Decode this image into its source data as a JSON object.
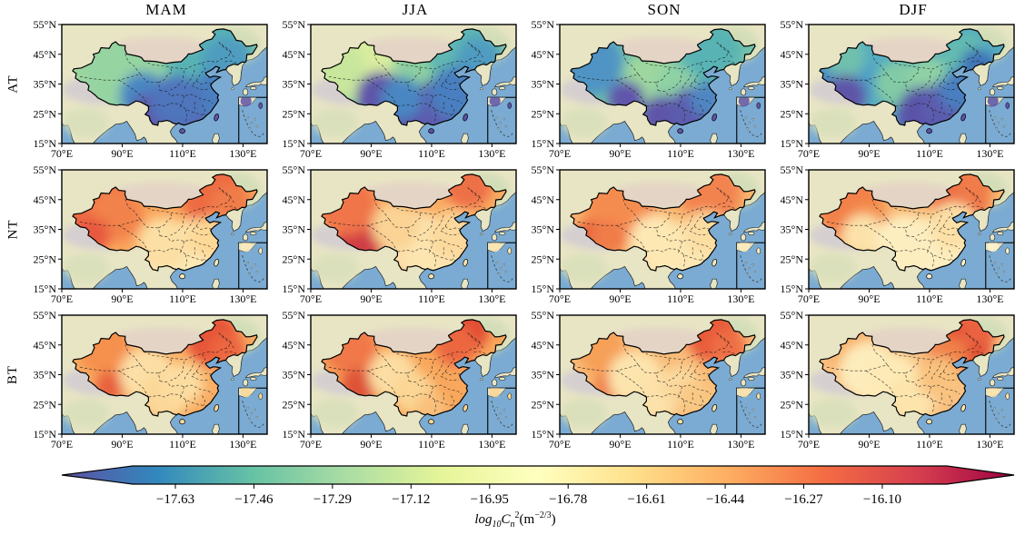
{
  "figure": {
    "type_note": "3x4 grid of seasonal maps of China with shared colorbar"
  },
  "colors": {
    "ocean": "#7babd2",
    "land": "#e8e5c4",
    "coast": "#1c1c1c",
    "tibet_tint": "#cfc8d4",
    "north_tint": "#e3cfc6",
    "ne_tint": "#ccdcb4"
  },
  "chart_data": {
    "type": "heatmap",
    "title": "",
    "columns": [
      "MAM",
      "JJA",
      "SON",
      "DJF"
    ],
    "rows": [
      "AT",
      "NT",
      "BT"
    ],
    "x_ticks": [
      "70°E",
      "90°E",
      "110°E",
      "130°E"
    ],
    "x_tick_lons": [
      70,
      90,
      110,
      130
    ],
    "y_ticks": [
      "55°N",
      "45°N",
      "35°N",
      "25°N",
      "15°N"
    ],
    "y_tick_lats": [
      55,
      45,
      35,
      25,
      15
    ],
    "lon_range": [
      70,
      138
    ],
    "lat_range": [
      15,
      55
    ],
    "colorbar": {
      "ticks": [
        "−17.63",
        "−17.46",
        "−17.29",
        "−17.12",
        "−16.95",
        "−16.78",
        "−16.61",
        "−16.44",
        "−16.27",
        "−16.10"
      ],
      "tick_values": [
        -17.63,
        -17.46,
        -17.29,
        -17.12,
        -16.95,
        -16.78,
        -16.61,
        -16.44,
        -16.27,
        -16.1
      ],
      "extend": "both",
      "colormap": [
        "#5e4fa2",
        "#3288bd",
        "#66c2a5",
        "#abdda4",
        "#e6f598",
        "#ffffbf",
        "#fee08b",
        "#fdae61",
        "#f46d43",
        "#d53e4f",
        "#9e0142"
      ],
      "label_parts": {
        "lead": "log",
        "lead_sub": "10",
        "sym": "C",
        "sym_sub": "n",
        "sym_sup": "2",
        "unit": "(m",
        "unit_sup": "−2/3",
        "unit_close": ")"
      }
    },
    "panels": [
      {
        "row": "AT",
        "col": "MAM",
        "base": "#7cc7a5",
        "island": "#6055aa",
        "blobs": [
          [
            80,
            44,
            16,
            "#9ed79f"
          ],
          [
            90,
            40,
            14,
            "#96d4a2"
          ],
          [
            118,
            46,
            14,
            "#59b3b4"
          ],
          [
            125,
            42,
            9,
            "#4f9cc0"
          ],
          [
            97,
            31,
            8,
            "#4a86c2"
          ],
          [
            100,
            24,
            8,
            "#5e55a8"
          ],
          [
            110,
            23,
            9,
            "#6055aa"
          ],
          [
            116,
            26,
            10,
            "#5b5cae"
          ],
          [
            120,
            31,
            8,
            "#4a7fc0"
          ],
          [
            108,
            29,
            9,
            "#4f74bc"
          ]
        ]
      },
      {
        "row": "AT",
        "col": "JJA",
        "base": "#8ccfa2",
        "island": "#5a52a8",
        "blobs": [
          [
            84,
            44,
            14,
            "#d9ec9e"
          ],
          [
            78,
            40,
            10,
            "#c8e69c"
          ],
          [
            120,
            47,
            12,
            "#5fb7b2"
          ],
          [
            126,
            43,
            8,
            "#4f9cc0"
          ],
          [
            93,
            31,
            8,
            "#5e55a8"
          ],
          [
            104,
            25,
            9,
            "#5a52a8"
          ],
          [
            114,
            27,
            10,
            "#5b5cae"
          ],
          [
            118,
            32,
            9,
            "#4a7fc0"
          ],
          [
            100,
            30,
            7,
            "#4a86c2"
          ]
        ]
      },
      {
        "row": "AT",
        "col": "SON",
        "base": "#74c2ab",
        "island": "#5e55a8",
        "blobs": [
          [
            80,
            42,
            11,
            "#4f94c4"
          ],
          [
            100,
            37,
            9,
            "#9ed79f"
          ],
          [
            108,
            34,
            7,
            "#8fd2a4"
          ],
          [
            120,
            46,
            10,
            "#59b3b4"
          ],
          [
            92,
            30,
            6,
            "#6055aa"
          ],
          [
            104,
            24,
            7,
            "#5e55a8"
          ],
          [
            114,
            26,
            8,
            "#5b5cae"
          ],
          [
            119,
            30,
            6,
            "#4f86c2"
          ]
        ]
      },
      {
        "row": "AT",
        "col": "DJF",
        "base": "#55acc0",
        "island": "#5a52a8",
        "blobs": [
          [
            78,
            40,
            11,
            "#4489c4"
          ],
          [
            85,
            36,
            8,
            "#4d9ec6"
          ],
          [
            82,
            44,
            7,
            "#6fc0ae"
          ],
          [
            100,
            35,
            8,
            "#82cba6"
          ],
          [
            110,
            37,
            7,
            "#8fd2a4"
          ],
          [
            122,
            44,
            8,
            "#63bbb0"
          ],
          [
            126,
            41,
            6,
            "#3f74b8"
          ],
          [
            82,
            31,
            7,
            "#5e55a8"
          ],
          [
            108,
            25,
            9,
            "#5a52a8"
          ],
          [
            116,
            27,
            9,
            "#5b5cae"
          ],
          [
            120,
            33,
            7,
            "#4a7fc0"
          ]
        ]
      },
      {
        "row": "NT",
        "col": "MAM",
        "base": "#f9a65c",
        "island": "#fdeab8",
        "blobs": [
          [
            82,
            44,
            13,
            "#ee6a42"
          ],
          [
            88,
            40,
            9,
            "#f2824c"
          ],
          [
            120,
            47,
            11,
            "#ee6a42"
          ],
          [
            126,
            43,
            7,
            "#f07c4a"
          ],
          [
            80,
            33,
            6,
            "#e85840"
          ],
          [
            108,
            25,
            12,
            "#fdeab8"
          ],
          [
            114,
            28,
            10,
            "#fdeab8"
          ],
          [
            104,
            30,
            9,
            "#fcdfa4"
          ],
          [
            119,
            32,
            7,
            "#fdd896"
          ]
        ]
      },
      {
        "row": "NT",
        "col": "JJA",
        "base": "#f9ab62",
        "island": "#fde5b0",
        "blobs": [
          [
            86,
            31,
            8,
            "#d03d44"
          ],
          [
            82,
            43,
            10,
            "#f0744a"
          ],
          [
            122,
            50,
            8,
            "#ee7046"
          ],
          [
            105,
            30,
            11,
            "#fce0ac"
          ],
          [
            112,
            27,
            10,
            "#fde5b0"
          ],
          [
            117,
            33,
            8,
            "#fcd99c"
          ],
          [
            98,
            36,
            8,
            "#fbd394"
          ]
        ]
      },
      {
        "row": "NT",
        "col": "SON",
        "base": "#f9b46e",
        "island": "#fdecbc",
        "blobs": [
          [
            90,
            43,
            12,
            "#f58c50"
          ],
          [
            120,
            47,
            10,
            "#f28350"
          ],
          [
            80,
            33,
            5,
            "#e6603e"
          ],
          [
            86,
            32,
            6,
            "#f07b48"
          ],
          [
            108,
            26,
            11,
            "#fdecbc"
          ],
          [
            102,
            31,
            9,
            "#fde7b2"
          ],
          [
            114,
            29,
            9,
            "#fde7b2"
          ],
          [
            118,
            34,
            7,
            "#fcdda2"
          ]
        ]
      },
      {
        "row": "NT",
        "col": "DJF",
        "base": "#f8b873",
        "island": "#fdf2cc",
        "blobs": [
          [
            84,
            42,
            11,
            "#f28148"
          ],
          [
            90,
            37,
            7,
            "#f4914f"
          ],
          [
            120,
            46,
            10,
            "#ee7044"
          ],
          [
            125,
            50,
            6,
            "#f07c4a"
          ],
          [
            88,
            33,
            7,
            "#fce2aa"
          ],
          [
            108,
            26,
            13,
            "#fdf2cc"
          ],
          [
            102,
            30,
            10,
            "#fdeec0"
          ],
          [
            115,
            30,
            10,
            "#fdeec0"
          ],
          [
            118,
            36,
            8,
            "#fce0a6"
          ]
        ]
      },
      {
        "row": "BT",
        "col": "MAM",
        "base": "#f8ad64",
        "island": "#fbd898",
        "blobs": [
          [
            120,
            47,
            9,
            "#e65438"
          ],
          [
            125,
            43,
            6,
            "#ec6640"
          ],
          [
            84,
            44,
            9,
            "#f5904e"
          ],
          [
            86,
            31,
            5,
            "#e8603e"
          ],
          [
            98,
            35,
            9,
            "#fcdfa6"
          ],
          [
            104,
            28,
            8,
            "#fbd898"
          ],
          [
            110,
            32,
            7,
            "#fcdda0"
          ]
        ]
      },
      {
        "row": "BT",
        "col": "JJA",
        "base": "#f8a75c",
        "island": "#fbd694",
        "blobs": [
          [
            121,
            50,
            8,
            "#e14c32"
          ],
          [
            118,
            45,
            7,
            "#ec6640"
          ],
          [
            83,
            44,
            9,
            "#f0784a"
          ],
          [
            86,
            31,
            6,
            "#de5338"
          ],
          [
            97,
            35,
            8,
            "#fcdda2"
          ],
          [
            104,
            29,
            7,
            "#fbd694"
          ],
          [
            110,
            24,
            5,
            "#f9c07c"
          ]
        ]
      },
      {
        "row": "BT",
        "col": "SON",
        "base": "#f9bc78",
        "island": "#fce2aa",
        "blobs": [
          [
            121,
            48,
            9,
            "#e85c3a"
          ],
          [
            126,
            44,
            6,
            "#ee6e44"
          ],
          [
            84,
            43,
            8,
            "#f6a058"
          ],
          [
            86,
            31,
            5,
            "#f08048"
          ],
          [
            95,
            34,
            9,
            "#fde4ae"
          ],
          [
            102,
            28,
            8,
            "#fce2aa"
          ],
          [
            110,
            31,
            7,
            "#fbd99e"
          ],
          [
            115,
            27,
            6,
            "#f9c884"
          ]
        ]
      },
      {
        "row": "BT",
        "col": "DJF",
        "base": "#f9c182",
        "island": "#fce4ac",
        "blobs": [
          [
            122,
            46,
            9,
            "#e04c32"
          ],
          [
            126,
            50,
            6,
            "#ea6240"
          ],
          [
            116,
            41,
            7,
            "#f08048"
          ],
          [
            84,
            43,
            8,
            "#f8b068"
          ],
          [
            86,
            31,
            5,
            "#ee7847"
          ],
          [
            90,
            36,
            10,
            "#fdecbc"
          ],
          [
            98,
            33,
            9,
            "#fdeab6"
          ],
          [
            104,
            27,
            8,
            "#fce4ac"
          ],
          [
            113,
            34,
            7,
            "#f9c27e"
          ]
        ]
      }
    ]
  }
}
